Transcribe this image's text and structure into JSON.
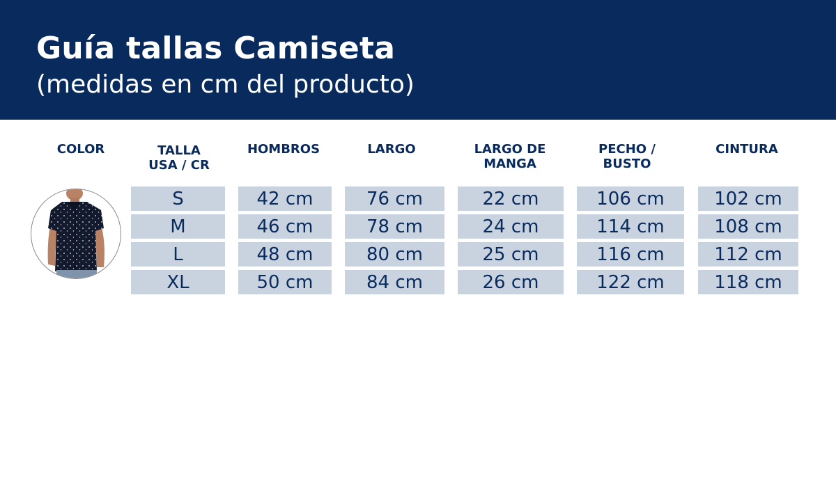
{
  "header": {
    "title": "Guía tallas Camiseta",
    "subtitle": "(medidas en cm del producto)"
  },
  "columns": [
    "COLOR",
    "TALLA\nUSA / CR",
    "HOMBROS",
    "LARGO",
    "LARGO DE\nMANGA",
    "PECHO /\nBUSTO",
    "CINTURA"
  ],
  "rows": [
    {
      "talla": "S",
      "hombros": "42 cm",
      "largo": "76 cm",
      "manga": "22 cm",
      "pecho": "106 cm",
      "cintura": "102 cm"
    },
    {
      "talla": "M",
      "hombros": "46 cm",
      "largo": "78 cm",
      "manga": "24 cm",
      "pecho": "114 cm",
      "cintura": "108 cm"
    },
    {
      "talla": "L",
      "hombros": "48 cm",
      "largo": "80 cm",
      "manga": "25 cm",
      "pecho": "116 cm",
      "cintura": "112 cm"
    },
    {
      "talla": "XL",
      "hombros": "50 cm",
      "largo": "84 cm",
      "manga": "26 cm",
      "pecho": "122 cm",
      "cintura": "118 cm"
    }
  ],
  "colors": {
    "banner": "#082a5c",
    "cell_background": "#c9d3e0",
    "text": "#082a5c"
  },
  "product_image": {
    "icon": "shirt-model-photo"
  }
}
